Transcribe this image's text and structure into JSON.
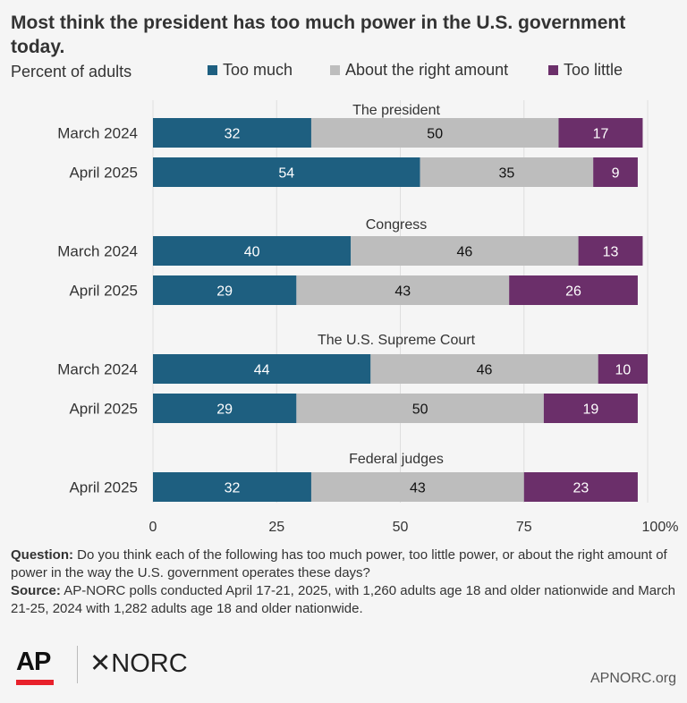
{
  "header": {
    "title": "Most think the president has too much power in the U.S. government today.",
    "subtitle": "Percent of adults"
  },
  "legend": [
    {
      "label": "Too much",
      "color": "#1e5f80"
    },
    {
      "label": "About the right amount",
      "color": "#bdbdbd"
    },
    {
      "label": "Too little",
      "color": "#6b2f6a"
    }
  ],
  "chart_data": {
    "type": "bar",
    "orientation": "horizontal",
    "stacked": true,
    "xlim": [
      0,
      100
    ],
    "x_ticks": [
      "0",
      "25",
      "50",
      "75",
      "100%"
    ],
    "grid": true,
    "series_names": [
      "Too much",
      "About the right amount",
      "Too little"
    ],
    "colors": [
      "#1e5f80",
      "#bdbdbd",
      "#6b2f6a"
    ],
    "groups": [
      {
        "title": "The president",
        "rows": [
          {
            "label": "March 2024",
            "values": [
              32,
              50,
              17
            ]
          },
          {
            "label": "April 2025",
            "values": [
              54,
              35,
              9
            ]
          }
        ]
      },
      {
        "title": "Congress",
        "rows": [
          {
            "label": "March 2024",
            "values": [
              40,
              46,
              13
            ]
          },
          {
            "label": "April 2025",
            "values": [
              29,
              43,
              26
            ]
          }
        ]
      },
      {
        "title": "The U.S. Supreme Court",
        "rows": [
          {
            "label": "March 2024",
            "values": [
              44,
              46,
              10
            ]
          },
          {
            "label": "April 2025",
            "values": [
              29,
              50,
              19
            ]
          }
        ]
      },
      {
        "title": "Federal judges",
        "rows": [
          {
            "label": "April 2025",
            "values": [
              32,
              43,
              23
            ]
          }
        ]
      }
    ]
  },
  "footer": {
    "question_label": "Question:",
    "question_text": " Do you think each of the following has too much power, too little power, or about the right amount of power in the way the U.S. government operates these days?",
    "source_label": "Source:",
    "source_text": " AP-NORC polls conducted April 17-21, 2025, with 1,260 adults age 18 and older nationwide and March 21-25, 2024 with 1,282 adults age 18 and older nationwide.",
    "logo_ap": "AP",
    "logo_norc": "✕NORC",
    "site": "APNORC.org"
  }
}
